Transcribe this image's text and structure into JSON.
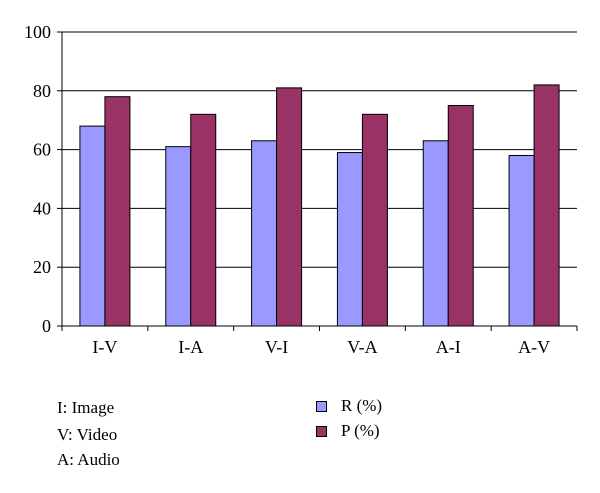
{
  "chart_data": {
    "type": "bar",
    "categories": [
      "I-V",
      "I-A",
      "V-I",
      "V-A",
      "A-I",
      "A-V"
    ],
    "series": [
      {
        "name": "R (%)",
        "color": "#9999ff",
        "values": [
          68,
          61,
          63,
          59,
          63,
          58
        ]
      },
      {
        "name": "P (%)",
        "color": "#993366",
        "values": [
          78,
          72,
          81,
          72,
          75,
          82
        ]
      }
    ],
    "ylim": [
      0,
      100
    ],
    "yticks": [
      0,
      20,
      40,
      60,
      80,
      100
    ],
    "grid": true,
    "legend_position": "bottom-right",
    "title": "",
    "xlabel": "",
    "ylabel": ""
  },
  "notes": [
    "I: Image",
    "V: Video",
    "A: Audio"
  ]
}
